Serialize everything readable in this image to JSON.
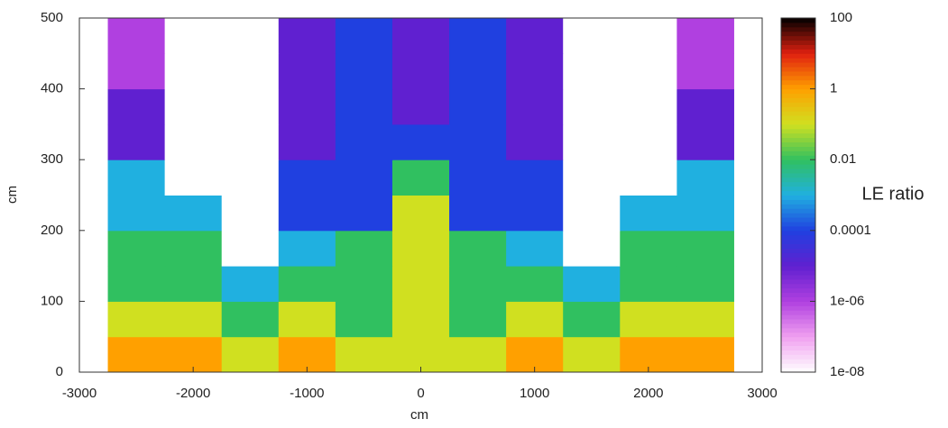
{
  "chart_data": {
    "type": "heatmap",
    "x_label": "cm",
    "y_label": "cm",
    "colorbar_label": "LE ratio",
    "xlim": [
      -3000,
      3000
    ],
    "ylim": [
      0,
      500
    ],
    "xticks": [
      -3000,
      -2000,
      -1000,
      0,
      1000,
      2000,
      3000
    ],
    "yticks": [
      0,
      100,
      200,
      300,
      400,
      500
    ],
    "xbins": [
      -2750,
      -2250,
      -1750,
      -1250,
      -750,
      -250,
      250,
      750,
      1250,
      1750,
      2250,
      2750
    ],
    "ybins": [
      0,
      50,
      100,
      150,
      200,
      250,
      300,
      350,
      400,
      450,
      500
    ],
    "z": [
      [
        1,
        1,
        0.1,
        1,
        0.1,
        0.1,
        0.1,
        1,
        0.1,
        1,
        1
      ],
      [
        0.1,
        0.1,
        0.01,
        0.1,
        0.01,
        0.1,
        0.01,
        0.1,
        0.01,
        0.1,
        0.1
      ],
      [
        0.01,
        0.01,
        0.001,
        0.01,
        0.01,
        0.1,
        0.01,
        0.01,
        0.001,
        0.01,
        0.01
      ],
      [
        0.01,
        0.01,
        1e-08,
        0.001,
        0.01,
        0.1,
        0.01,
        0.001,
        1e-08,
        0.01,
        0.01
      ],
      [
        0.001,
        0.001,
        1e-08,
        0.0001,
        0.0001,
        0.1,
        0.0001,
        0.0001,
        1e-08,
        0.001,
        0.001
      ],
      [
        0.001,
        1e-08,
        1e-08,
        0.0001,
        0.0001,
        0.01,
        0.0001,
        0.0001,
        1e-08,
        1e-08,
        0.001
      ],
      [
        1e-05,
        1e-08,
        1e-08,
        1e-05,
        0.0001,
        0.0001,
        0.0001,
        1e-05,
        1e-08,
        1e-08,
        1e-05
      ],
      [
        1e-05,
        1e-08,
        1e-08,
        1e-05,
        0.0001,
        1e-05,
        0.0001,
        1e-05,
        1e-08,
        1e-08,
        1e-05
      ],
      [
        1e-06,
        1e-08,
        1e-08,
        1e-05,
        0.0001,
        1e-05,
        0.0001,
        1e-05,
        1e-08,
        1e-08,
        1e-06
      ],
      [
        1e-06,
        1e-08,
        1e-08,
        1e-05,
        0.0001,
        1e-05,
        0.0001,
        1e-05,
        1e-08,
        1e-08,
        1e-06
      ]
    ],
    "clim": [
      1e-08,
      100
    ],
    "color_log_scale": true,
    "colormap": [
      "#ffffff",
      "#f0a0f0",
      "#b040e0",
      "#6020d0",
      "#2040e0",
      "#20b0e0",
      "#30c060",
      "#d0e020",
      "#ffa000",
      "#e02010",
      "#000000"
    ],
    "cticks": [
      100,
      1,
      0.01,
      0.0001,
      {
        "value": 1e-06,
        "label": "1e-06"
      },
      {
        "value": 1e-08,
        "label": "1e-08"
      }
    ]
  }
}
